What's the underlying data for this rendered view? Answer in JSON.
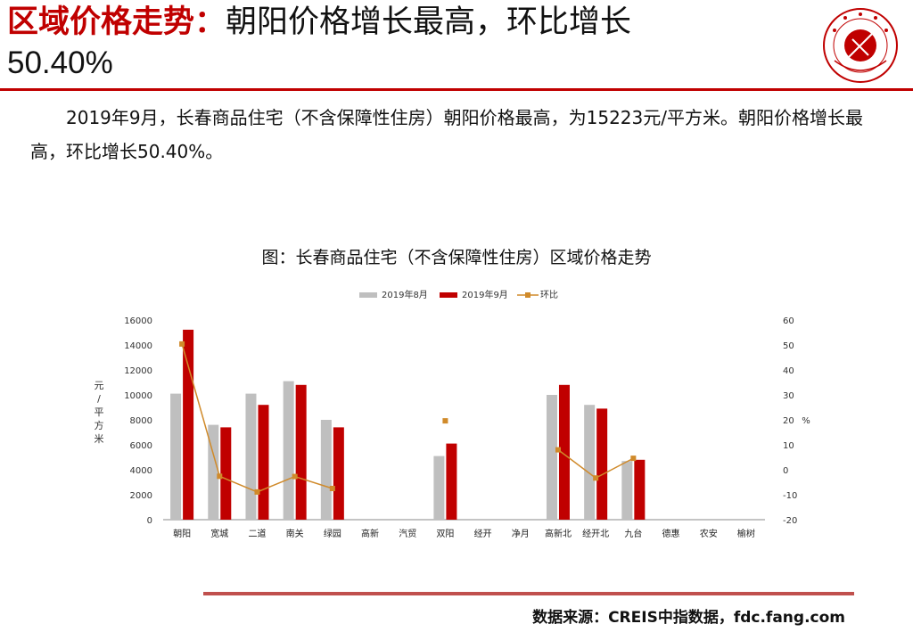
{
  "slide": {
    "title_prefix": "区域价格走势：",
    "title_rest": "朝阳价格增长最高，环比增长",
    "title_line2": "50.40%",
    "body": "2019年9月，长春商品住宅（不含保障性住房）朝阳价格最高，为15223元/平方米。朝阳价格增长最高，环比增长50.40%。",
    "source": "数据来源：CREIS中指数据，fdc.fang.com"
  },
  "colors": {
    "accent_red": "#c00000",
    "series_aug": "#bfbfbf",
    "series_sep": "#c00000",
    "series_ratio": "#d08a2a"
  },
  "chart_data": {
    "type": "bar",
    "title": "图：长春商品住宅（不含保障性住房）区域价格走势",
    "ylabel": "元/平方米",
    "y2label": "%",
    "ylim": [
      0,
      16000
    ],
    "y2lim": [
      -20,
      60
    ],
    "yticks": [
      "0",
      "2000",
      "4000",
      "6000",
      "8000",
      "10000",
      "12000",
      "14000",
      "16000"
    ],
    "y2ticks": [
      "-20",
      "-10",
      "0",
      "10",
      "20",
      "30",
      "40",
      "50",
      "60"
    ],
    "legend_position": "top",
    "categories": [
      "朝阳",
      "宽城",
      "二道",
      "南关",
      "绿园",
      "高新",
      "汽贸",
      "双阳",
      "经开",
      "净月",
      "高新北",
      "经开北",
      "九台",
      "德惠",
      "农安",
      "榆树"
    ],
    "series": [
      {
        "name": "2019年8月",
        "type": "bar",
        "values": [
          10100,
          7600,
          10100,
          11100,
          8000,
          null,
          null,
          5100,
          null,
          null,
          10000,
          9200,
          4700,
          null,
          null,
          null
        ]
      },
      {
        "name": "2019年9月",
        "type": "bar",
        "values": [
          15223,
          7400,
          9200,
          10800,
          7400,
          null,
          null,
          6100,
          null,
          null,
          10800,
          8900,
          4800,
          null,
          null,
          null
        ]
      },
      {
        "name": "环比",
        "type": "line",
        "axis": "right",
        "values": [
          50.4,
          -2.6,
          -8.9,
          -2.7,
          -7.5,
          null,
          null,
          19.6,
          null,
          null,
          8.0,
          -3.3,
          4.6,
          null,
          null,
          null
        ]
      }
    ]
  }
}
